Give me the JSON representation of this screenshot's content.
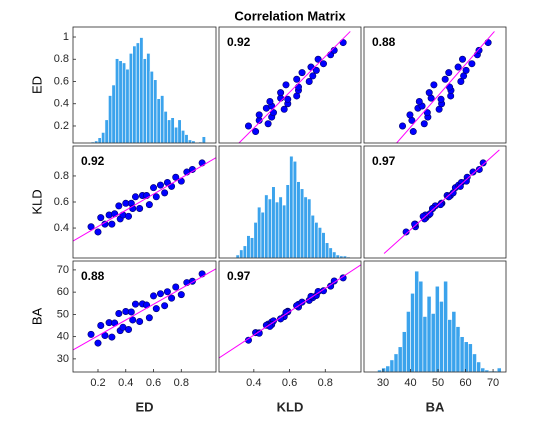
{
  "chart_data": {
    "type": "corrplot",
    "title": "Correlation Matrix",
    "variables": [
      "ED",
      "KLD",
      "BA"
    ],
    "correlations": [
      [
        null,
        0.92,
        0.88
      ],
      [
        0.92,
        null,
        0.97
      ],
      [
        0.88,
        0.97,
        null
      ]
    ],
    "xlims": [
      [
        0.02,
        1.05
      ],
      [
        0.205,
        1.0
      ],
      [
        23.1,
        74.7
      ]
    ],
    "ylims": [
      [
        0.047,
        1.09
      ],
      [
        0.17,
        1.03
      ],
      [
        24.1,
        74
      ]
    ],
    "xticks": [
      [
        0.2,
        0.4,
        0.6,
        0.8
      ],
      [
        0.4,
        0.6,
        0.8
      ],
      [
        30,
        40,
        50,
        60,
        70
      ]
    ],
    "yticks": [
      [
        0.2,
        0.4,
        0.6,
        0.8,
        1
      ],
      [
        0.4,
        0.6,
        0.8
      ],
      [
        30,
        40,
        50,
        60,
        70
      ]
    ],
    "point_color": "#0000ff",
    "fit_color": "#ff00ff",
    "hist_color": "#3ba3ec",
    "label_color": "#00009c",
    "histograms": [
      {
        "bins": [
          0.15,
          0.175,
          0.2,
          0.225,
          0.25,
          0.275,
          0.3,
          0.325,
          0.35,
          0.375,
          0.4,
          0.425,
          0.45,
          0.475,
          0.5,
          0.525,
          0.55,
          0.575,
          0.6,
          0.625,
          0.65,
          0.675,
          0.7,
          0.725,
          0.75,
          0.775,
          0.8,
          0.825,
          0.85,
          0.875,
          0.9,
          0.925,
          0.95,
          0.975
        ],
        "counts": [
          1,
          2,
          5,
          10,
          22,
          45,
          55,
          80,
          78,
          76,
          70,
          85,
          92,
          95,
          100,
          80,
          85,
          68,
          60,
          42,
          45,
          30,
          22,
          24,
          15,
          22,
          12,
          8,
          3,
          2,
          0,
          1,
          6
        ]
      },
      {
        "bins": [
          0.3,
          0.32,
          0.34,
          0.36,
          0.38,
          0.4,
          0.42,
          0.44,
          0.46,
          0.48,
          0.5,
          0.52,
          0.54,
          0.56,
          0.58,
          0.6,
          0.62,
          0.64,
          0.66,
          0.68,
          0.7,
          0.72,
          0.74,
          0.76,
          0.78,
          0.8,
          0.82,
          0.84,
          0.86,
          0.88,
          0.9,
          0.92,
          0.94
        ],
        "counts": [
          3,
          8,
          12,
          22,
          20,
          35,
          50,
          45,
          62,
          58,
          70,
          55,
          60,
          52,
          72,
          100,
          95,
          75,
          68,
          60,
          58,
          42,
          35,
          30,
          25,
          15,
          10,
          6,
          3,
          2,
          2,
          1
        ]
      },
      {
        "bins": [
          28,
          29.5,
          31,
          32.5,
          34,
          35.5,
          37,
          38.5,
          40,
          41.5,
          43,
          44.5,
          46,
          47.5,
          49,
          50.5,
          52,
          53.5,
          55,
          56.5,
          58,
          59.5,
          61,
          62.5,
          64,
          65.5,
          67,
          68.5,
          70,
          71.5,
          73
        ],
        "counts": [
          2,
          4,
          6,
          12,
          18,
          25,
          40,
          60,
          78,
          100,
          90,
          55,
          75,
          58,
          85,
          70,
          90,
          52,
          60,
          45,
          35,
          30,
          28,
          18,
          10,
          4,
          2,
          1,
          1,
          4
        ]
      }
    ],
    "scatter": [
      [
        null,
        null,
        null
      ],
      [
        {
          "x": [
            0.15,
            0.2,
            0.22,
            0.25,
            0.28,
            0.3,
            0.32,
            0.35,
            0.36,
            0.38,
            0.4,
            0.42,
            0.44,
            0.45,
            0.47,
            0.5,
            0.52,
            0.55,
            0.57,
            0.6,
            0.62,
            0.65,
            0.68,
            0.7,
            0.73,
            0.76,
            0.8,
            0.84,
            0.88,
            0.95
          ],
          "y": [
            0.41,
            0.37,
            0.48,
            0.43,
            0.5,
            0.43,
            0.51,
            0.57,
            0.47,
            0.5,
            0.59,
            0.49,
            0.59,
            0.55,
            0.64,
            0.55,
            0.65,
            0.65,
            0.58,
            0.71,
            0.64,
            0.73,
            0.67,
            0.75,
            0.72,
            0.79,
            0.76,
            0.83,
            0.85,
            0.9
          ],
          "fit": {
            "x": [
              0.02,
              1.05
            ],
            "y": [
              0.3,
              0.94
            ]
          }
        },
        null,
        null
      ],
      [
        {
          "x": [
            0.15,
            0.2,
            0.22,
            0.25,
            0.28,
            0.3,
            0.32,
            0.35,
            0.36,
            0.38,
            0.4,
            0.42,
            0.44,
            0.45,
            0.47,
            0.5,
            0.52,
            0.55,
            0.57,
            0.6,
            0.62,
            0.65,
            0.68,
            0.7,
            0.73,
            0.76,
            0.8,
            0.84,
            0.88,
            0.95
          ],
          "y": [
            41.0,
            37.1,
            45.0,
            40.5,
            46.3,
            39.8,
            46.1,
            50.4,
            42.7,
            44.2,
            51.3,
            43.2,
            51.1,
            47.5,
            54.6,
            46.8,
            54.7,
            54.2,
            48.5,
            58.3,
            52.6,
            59.3,
            53.9,
            60.2,
            57.3,
            62.3,
            58.9,
            64.3,
            64.9,
            68.2
          ],
          "fit": {
            "x": [
              0.02,
              1.05
            ],
            "y": [
              34,
              70.5
            ]
          }
        },
        {
          "x": [
            0.41,
            0.37,
            0.48,
            0.43,
            0.5,
            0.43,
            0.51,
            0.57,
            0.47,
            0.5,
            0.59,
            0.49,
            0.59,
            0.55,
            0.64,
            0.55,
            0.65,
            0.65,
            0.58,
            0.71,
            0.64,
            0.73,
            0.67,
            0.75,
            0.72,
            0.79,
            0.76,
            0.83,
            0.85,
            0.9
          ],
          "y": [
            41.8,
            38.4,
            45.6,
            41.7,
            46.6,
            41.5,
            47.1,
            49.0,
            45.1,
            45.4,
            51.4,
            44.6,
            51.2,
            48.0,
            53.9,
            48.0,
            54.5,
            53.3,
            50.9,
            56.3,
            53.9,
            57.5,
            55.5,
            58.5,
            58.1,
            60.6,
            60.3,
            62.7,
            65.0,
            66.4
          ],
          "fit": {
            "x": [
              0.205,
              1.0
            ],
            "y": [
              30.4,
              72.3
            ]
          }
        },
        null
      ]
    ]
  }
}
